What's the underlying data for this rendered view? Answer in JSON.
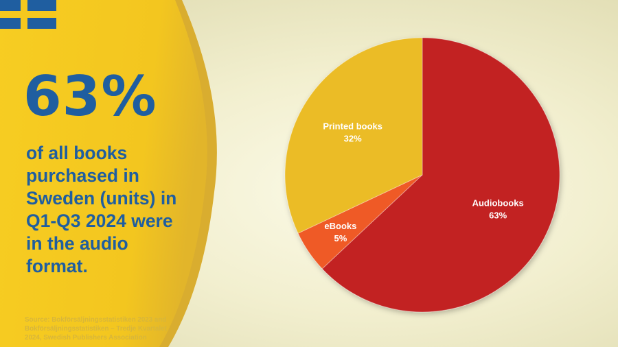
{
  "headline": {
    "stat": "63%",
    "lines": [
      "of all books",
      "purchased in",
      "Sweden (units) in",
      "Q1-Q3 2024 were",
      "in the audio",
      "format."
    ]
  },
  "source": {
    "lines": [
      "Source: Bokförsäljningsstatistiken 2023 and",
      "Bokförsäljningsstatistiken – Tredje Kvartalet",
      "2024, Swedish Publishers Association"
    ]
  },
  "colors": {
    "flag_blue": "#1f5ea0",
    "flag_yellow": "#f5c81e",
    "panel_yellow": "#f5c81e",
    "headline_blue": "#1f5ea0",
    "audiobooks": "#c22024",
    "ebooks": "#ef5a26",
    "printed": "#ebbc27"
  },
  "chart_data": {
    "type": "pie",
    "slices": [
      {
        "label": "Audiobooks",
        "value": 63,
        "value_label": "63%",
        "color": "#c22024"
      },
      {
        "label": "eBooks",
        "value": 5,
        "value_label": "5%",
        "color": "#ef5a26"
      },
      {
        "label": "Printed books",
        "value": 32,
        "value_label": "32%",
        "color": "#ebbc27"
      }
    ],
    "start": "12 o'clock",
    "direction": "clockwise",
    "legend": "none"
  }
}
